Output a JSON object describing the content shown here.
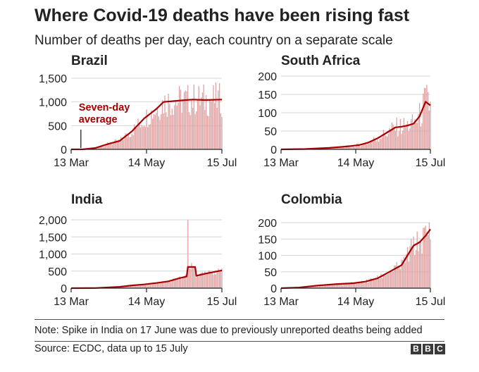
{
  "title": "Where Covid-19 deaths have been rising fast",
  "subtitle": "Number of deaths per day, each country on a separate scale",
  "note": "Note: Spike in India on 17 June was due to previously unreported deaths being added",
  "source": "Source: ECDC, data up to 15 July",
  "logo": [
    "B",
    "B",
    "C"
  ],
  "colors": {
    "bar": "#e0a3a3",
    "line": "#a80000",
    "axis": "#222222",
    "grid": "#d6d6d6"
  },
  "chart_data": [
    {
      "type": "bar+line",
      "title": "Brazil",
      "x_ticks": [
        "13 Mar",
        "14 May",
        "15 Jul"
      ],
      "x_tick_days": [
        0,
        62,
        124
      ],
      "y_ticks": [
        0,
        500,
        1000,
        1500
      ],
      "y_tick_labels": [
        "0",
        "500",
        "1,000",
        "1,500"
      ],
      "ylim": [
        0,
        1500
      ],
      "annotation": {
        "text": [
          "Seven-day",
          "average"
        ],
        "day": 8,
        "value": 0
      },
      "series": [
        {
          "name": "Daily deaths",
          "kind": "bar"
        },
        {
          "name": "Seven-day average",
          "kind": "line",
          "points": [
            [
              0,
              0
            ],
            [
              10,
              2
            ],
            [
              20,
              30
            ],
            [
              30,
              110
            ],
            [
              40,
              180
            ],
            [
              50,
              380
            ],
            [
              60,
              650
            ],
            [
              70,
              850
            ],
            [
              76,
              1000
            ],
            [
              90,
              1030
            ],
            [
              100,
              1050
            ],
            [
              110,
              1040
            ],
            [
              124,
              1050
            ]
          ]
        }
      ],
      "bar_noise": 0.35
    },
    {
      "type": "bar+line",
      "title": "South Africa",
      "x_ticks": [
        "13 Mar",
        "14 May",
        "15 Jul"
      ],
      "x_tick_days": [
        0,
        62,
        124
      ],
      "y_ticks": [
        0,
        50,
        100,
        150,
        200
      ],
      "y_tick_labels": [
        "0",
        "50",
        "100",
        "150",
        "200"
      ],
      "ylim": [
        0,
        200
      ],
      "series": [
        {
          "name": "Daily deaths",
          "kind": "bar"
        },
        {
          "name": "Seven-day average",
          "kind": "line",
          "points": [
            [
              0,
              0
            ],
            [
              20,
              1
            ],
            [
              40,
              4
            ],
            [
              55,
              8
            ],
            [
              65,
              12
            ],
            [
              72,
              18
            ],
            [
              80,
              30
            ],
            [
              90,
              50
            ],
            [
              95,
              60
            ],
            [
              100,
              62
            ],
            [
              105,
              65
            ],
            [
              110,
              70
            ],
            [
              115,
              90
            ],
            [
              120,
              130
            ],
            [
              124,
              120
            ]
          ]
        }
      ],
      "bar_noise": 0.45
    },
    {
      "type": "bar+line",
      "title": "India",
      "x_ticks": [
        "13 Mar",
        "14 May",
        "15 Jul"
      ],
      "x_tick_days": [
        0,
        62,
        124
      ],
      "y_ticks": [
        0,
        500,
        1000,
        1500,
        2000
      ],
      "y_tick_labels": [
        "0",
        "500",
        "1,000",
        "1,500",
        "2,000"
      ],
      "ylim": [
        0,
        2000
      ],
      "spike": {
        "date": "17 June",
        "day": 96,
        "value": 2000
      },
      "series": [
        {
          "name": "Daily deaths",
          "kind": "bar"
        },
        {
          "name": "Seven-day average",
          "kind": "line",
          "points": [
            [
              0,
              0
            ],
            [
              20,
              5
            ],
            [
              40,
              40
            ],
            [
              50,
              80
            ],
            [
              60,
              110
            ],
            [
              70,
              150
            ],
            [
              80,
              200
            ],
            [
              90,
              300
            ],
            [
              95,
              340
            ],
            [
              96,
              620
            ],
            [
              102,
              620
            ],
            [
              103,
              360
            ],
            [
              110,
              420
            ],
            [
              124,
              520
            ]
          ]
        }
      ],
      "bar_noise": 0.2
    },
    {
      "type": "bar+line",
      "title": "Colombia",
      "x_ticks": [
        "13 Mar",
        "14 May",
        "15 Jul"
      ],
      "x_tick_days": [
        0,
        62,
        124
      ],
      "y_ticks": [
        0,
        50,
        100,
        150,
        200
      ],
      "y_tick_labels": [
        "0",
        "50",
        "100",
        "150",
        "200"
      ],
      "ylim": [
        0,
        200
      ],
      "series": [
        {
          "name": "Daily deaths",
          "kind": "bar"
        },
        {
          "name": "Seven-day average",
          "kind": "line",
          "points": [
            [
              0,
              0
            ],
            [
              15,
              2
            ],
            [
              30,
              8
            ],
            [
              45,
              12
            ],
            [
              60,
              15
            ],
            [
              70,
              20
            ],
            [
              80,
              30
            ],
            [
              90,
              50
            ],
            [
              100,
              70
            ],
            [
              105,
              100
            ],
            [
              110,
              130
            ],
            [
              115,
              140
            ],
            [
              120,
              160
            ],
            [
              124,
              180
            ]
          ]
        }
      ],
      "bar_noise": 0.3
    }
  ]
}
